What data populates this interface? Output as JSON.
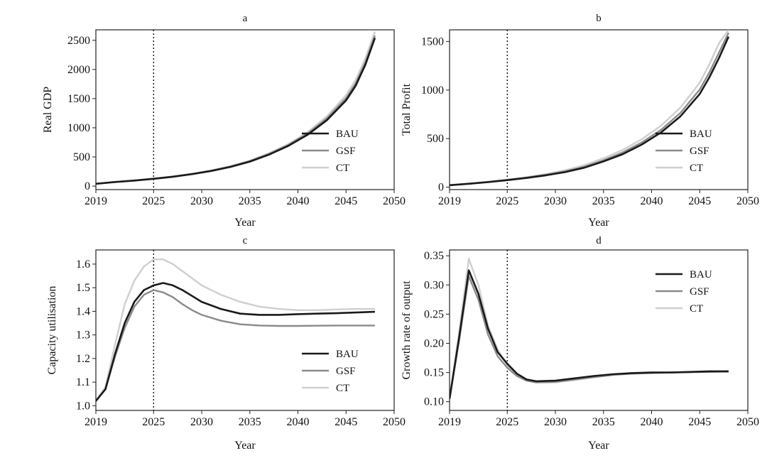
{
  "series_styles": [
    {
      "name": "BAU",
      "color": "#1a1a1a"
    },
    {
      "name": "GSF",
      "color": "#8a8a8a"
    },
    {
      "name": "CT",
      "color": "#cfcfcf"
    }
  ],
  "chart_data": [
    {
      "type": "line",
      "title": "a",
      "xlabel": "Year",
      "ylabel": "Real GDP",
      "xlim": [
        2019,
        2050
      ],
      "ylim": [
        -60,
        2680
      ],
      "xticks": [
        2019,
        2025,
        2030,
        2035,
        2040,
        2045,
        2050
      ],
      "yticks": [
        0,
        500,
        1000,
        1500,
        2000,
        2500
      ],
      "vline": 2025,
      "legend": "center-right",
      "x": [
        2019,
        2021,
        2023,
        2025,
        2027,
        2029,
        2031,
        2033,
        2035,
        2037,
        2039,
        2041,
        2043,
        2045,
        2046,
        2047,
        2048
      ],
      "series": [
        {
          "name": "BAU",
          "values": [
            40,
            70,
            95,
            125,
            160,
            205,
            260,
            330,
            420,
            540,
            690,
            880,
            1130,
            1470,
            1720,
            2080,
            2540
          ]
        },
        {
          "name": "GSF",
          "values": [
            40,
            70,
            96,
            127,
            163,
            208,
            264,
            336,
            428,
            552,
            705,
            900,
            1160,
            1510,
            1760,
            2120,
            2580
          ]
        },
        {
          "name": "CT",
          "values": [
            40,
            71,
            97,
            128,
            165,
            212,
            270,
            344,
            438,
            565,
            722,
            925,
            1195,
            1560,
            1820,
            2190,
            2650
          ]
        }
      ]
    },
    {
      "type": "line",
      "title": "b",
      "xlabel": "Year",
      "ylabel": "Total Profit",
      "xlim": [
        2019,
        2050
      ],
      "ylim": [
        -25,
        1620
      ],
      "xticks": [
        2019,
        2025,
        2030,
        2035,
        2040,
        2045,
        2050
      ],
      "yticks": [
        0,
        500,
        1000,
        1500
      ],
      "vline": 2025,
      "legend": "center-right",
      "x": [
        2019,
        2021,
        2023,
        2025,
        2027,
        2029,
        2031,
        2033,
        2035,
        2037,
        2039,
        2041,
        2043,
        2045,
        2046,
        2047,
        2048
      ],
      "series": [
        {
          "name": "BAU",
          "values": [
            20,
            35,
            52,
            72,
            95,
            122,
            155,
            200,
            265,
            340,
            440,
            565,
            730,
            960,
            1130,
            1330,
            1550
          ]
        },
        {
          "name": "GSF",
          "values": [
            20,
            36,
            54,
            74,
            98,
            127,
            162,
            210,
            278,
            358,
            462,
            592,
            765,
            1005,
            1180,
            1385,
            1590
          ]
        },
        {
          "name": "CT",
          "values": [
            21,
            38,
            57,
            78,
            104,
            135,
            174,
            226,
            298,
            384,
            495,
            635,
            820,
            1075,
            1265,
            1480,
            1620
          ]
        }
      ]
    },
    {
      "type": "line",
      "title": "c",
      "xlabel": "Year",
      "ylabel": "Capacity utilisation",
      "xlim": [
        2019,
        2050
      ],
      "ylim": [
        0.98,
        1.66
      ],
      "xticks": [
        2019,
        2025,
        2030,
        2035,
        2040,
        2045,
        2050
      ],
      "yticks": [
        1.0,
        1.1,
        1.2,
        1.3,
        1.4,
        1.5,
        1.6
      ],
      "vline": 2025,
      "legend": "bottom-right",
      "x": [
        2019,
        2020,
        2021,
        2022,
        2023,
        2024,
        2025,
        2026,
        2027,
        2028,
        2029,
        2030,
        2032,
        2034,
        2036,
        2038,
        2040,
        2042,
        2044,
        2046,
        2048
      ],
      "series": [
        {
          "name": "BAU",
          "values": [
            1.02,
            1.07,
            1.22,
            1.35,
            1.44,
            1.49,
            1.51,
            1.52,
            1.51,
            1.49,
            1.465,
            1.44,
            1.41,
            1.39,
            1.385,
            1.385,
            1.388,
            1.39,
            1.392,
            1.395,
            1.398
          ]
        },
        {
          "name": "GSF",
          "values": [
            1.02,
            1.07,
            1.21,
            1.33,
            1.42,
            1.47,
            1.49,
            1.48,
            1.46,
            1.43,
            1.405,
            1.385,
            1.36,
            1.345,
            1.34,
            1.338,
            1.338,
            1.339,
            1.34,
            1.34,
            1.34
          ]
        },
        {
          "name": "CT",
          "values": [
            1.02,
            1.08,
            1.26,
            1.43,
            1.53,
            1.59,
            1.62,
            1.62,
            1.6,
            1.57,
            1.54,
            1.51,
            1.47,
            1.44,
            1.42,
            1.41,
            1.405,
            1.405,
            1.408,
            1.41,
            1.41
          ]
        }
      ]
    },
    {
      "type": "line",
      "title": "d",
      "xlabel": "Year",
      "ylabel": "Growth rate of output",
      "xlim": [
        2019,
        2050
      ],
      "ylim": [
        0.085,
        0.36
      ],
      "xticks": [
        2019,
        2025,
        2030,
        2035,
        2040,
        2045,
        2050
      ],
      "yticks": [
        0.1,
        0.15,
        0.2,
        0.25,
        0.3,
        0.35
      ],
      "vline": 2025,
      "legend": "top-right",
      "x": [
        2019,
        2020,
        2021,
        2022,
        2023,
        2024,
        2025,
        2026,
        2027,
        2028,
        2030,
        2032,
        2034,
        2036,
        2038,
        2040,
        2042,
        2044,
        2046,
        2048
      ],
      "series": [
        {
          "name": "BAU",
          "values": [
            0.105,
            0.21,
            0.325,
            0.285,
            0.225,
            0.185,
            0.165,
            0.148,
            0.138,
            0.135,
            0.136,
            0.14,
            0.144,
            0.147,
            0.149,
            0.15,
            0.15,
            0.151,
            0.152,
            0.152
          ]
        },
        {
          "name": "GSF",
          "values": [
            0.105,
            0.205,
            0.315,
            0.275,
            0.215,
            0.178,
            0.158,
            0.144,
            0.136,
            0.133,
            0.134,
            0.138,
            0.142,
            0.146,
            0.148,
            0.149,
            0.15,
            0.151,
            0.151,
            0.152
          ]
        },
        {
          "name": "CT",
          "values": [
            0.105,
            0.22,
            0.345,
            0.3,
            0.23,
            0.19,
            0.162,
            0.145,
            0.136,
            0.133,
            0.133,
            0.137,
            0.142,
            0.146,
            0.148,
            0.149,
            0.15,
            0.15,
            0.151,
            0.151
          ]
        }
      ]
    }
  ]
}
